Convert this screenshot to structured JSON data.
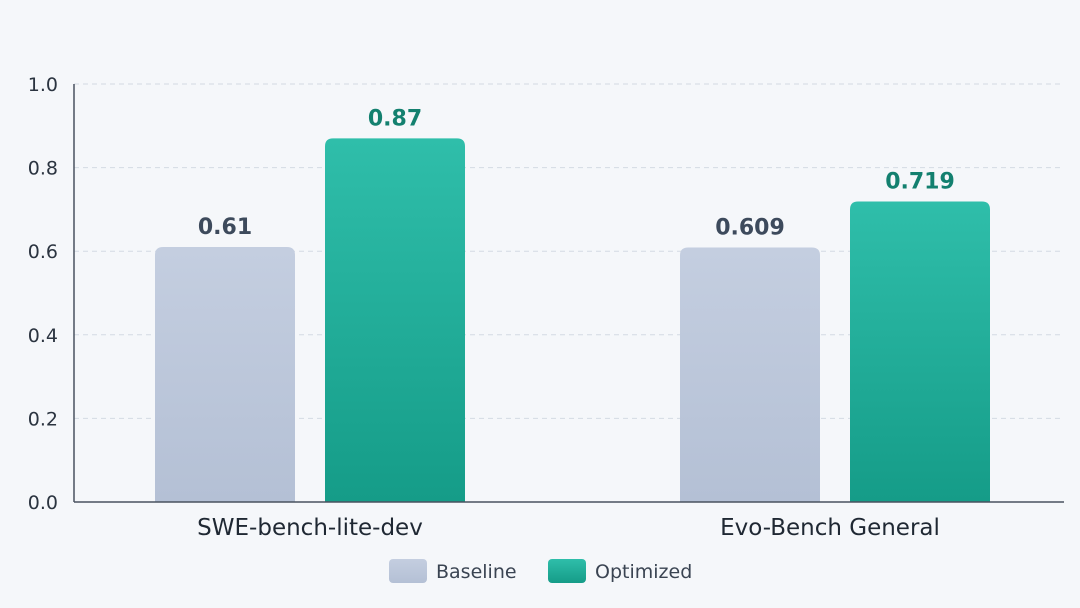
{
  "chart_data": {
    "type": "bar",
    "categories": [
      "SWE-bench-lite-dev",
      "Evo-Bench General"
    ],
    "series": [
      {
        "name": "Baseline",
        "values": [
          0.61,
          0.609
        ],
        "value_labels": [
          "0.61",
          "0.609"
        ],
        "color": "#bcc7d9",
        "label_color": "#3d4a5c"
      },
      {
        "name": "Optimized",
        "values": [
          0.87,
          0.719
        ],
        "value_labels": [
          "0.87",
          "0.719"
        ],
        "color": "#2bb8a4",
        "label_color": "#13806f"
      }
    ],
    "ylim": [
      0,
      1.0
    ],
    "yticks": [
      "0.0",
      "0.2",
      "0.4",
      "0.6",
      "0.8",
      "1.0"
    ],
    "grid": true,
    "legend": "bottom-center",
    "title": "",
    "xlabel": "",
    "ylabel": ""
  }
}
